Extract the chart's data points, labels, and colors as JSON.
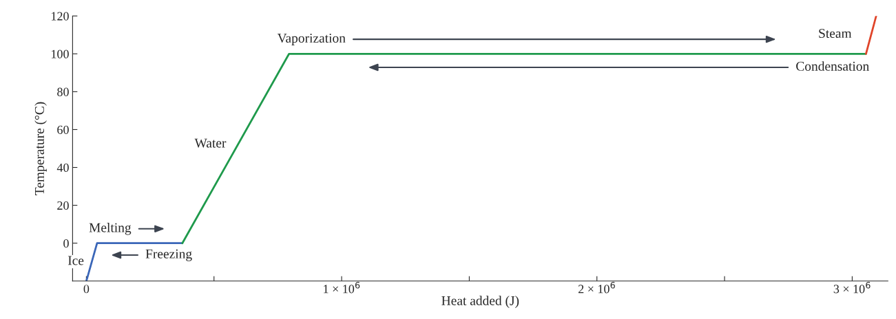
{
  "chart_data": {
    "type": "line",
    "xlabel": "Heat added (J)",
    "ylabel": "Temperature (°C)",
    "series": [
      {
        "color": "#3a66b8",
        "x": [
          0,
          42000,
          376000
        ],
        "values": [
          -20,
          0,
          0
        ]
      },
      {
        "color": "#1f9a4c",
        "x": [
          376000,
          794000,
          3054000
        ],
        "values": [
          0,
          100,
          100
        ]
      },
      {
        "color": "#e0452a",
        "x": [
          3054000,
          3094000
        ],
        "values": [
          100,
          120
        ]
      }
    ],
    "xlim": [
      -54000,
      3140000
    ],
    "xticks": [
      0,
      {
        "value": 500000,
        "label": null
      },
      {
        "value": 1000000,
        "label": "1 × 10$^{6}$"
      },
      {
        "value": 1500000,
        "label": null
      },
      {
        "value": 2000000,
        "label": "2 × 10$^{6}$"
      },
      {
        "value": 2500000,
        "label": null
      },
      {
        "value": 3000000,
        "label": "3 × 10$^{6}$"
      }
    ],
    "ylim": [
      -20,
      120
    ],
    "yticks": [
      0,
      20,
      40,
      60,
      80,
      100,
      120
    ],
    "annotations": [
      "Ice",
      "Melting",
      "Freezing",
      "Water",
      "Vaporization",
      "Steam",
      "Condensation"
    ],
    "grid": false,
    "legend": false,
    "marker": "none",
    "line_style": "solid"
  }
}
